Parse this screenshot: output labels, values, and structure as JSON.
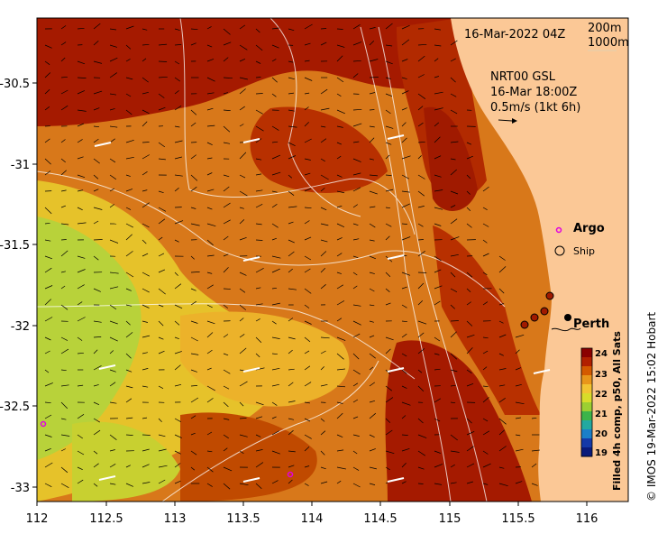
{
  "map": {
    "timestamp": "16-Mar-2022 04Z",
    "contours_legend": [
      "200m",
      "1000m"
    ],
    "current_product": "NRT00 GSL",
    "current_time": "16-Mar 18:00Z",
    "current_scale": "0.5m/s (1kt 6h)",
    "argo_label": "Argo",
    "ship_label": "Ship",
    "city_label": "Perth",
    "credit": "© IMOS 19-Mar-2022 15:02 Hobart"
  },
  "axes": {
    "x_ticks": [
      "112",
      "112.5",
      "113",
      "113.5",
      "114",
      "114.5",
      "115",
      "115.5",
      "116"
    ],
    "y_ticks": [
      "-30.5",
      "-31",
      "-31.5",
      "-32",
      "-32.5",
      "-33"
    ]
  },
  "colorbar": {
    "title": "Filled 4h comp, p50, All Sats",
    "ticks": [
      "24",
      "23",
      "22",
      "21",
      "20",
      "19"
    ],
    "colors": [
      "#8b0000",
      "#b22000",
      "#d45a00",
      "#e8961a",
      "#f2c431",
      "#d8dc2a",
      "#9ccf32",
      "#3cb44a",
      "#23a9a0",
      "#1a7fc8",
      "#1539a8",
      "#0a1a7a"
    ]
  },
  "colors": {
    "land": "#fbc896",
    "ocean_warm": "#a01a00",
    "ocean_mid": "#d87a10",
    "ocean_cool": "#9ccf32"
  }
}
